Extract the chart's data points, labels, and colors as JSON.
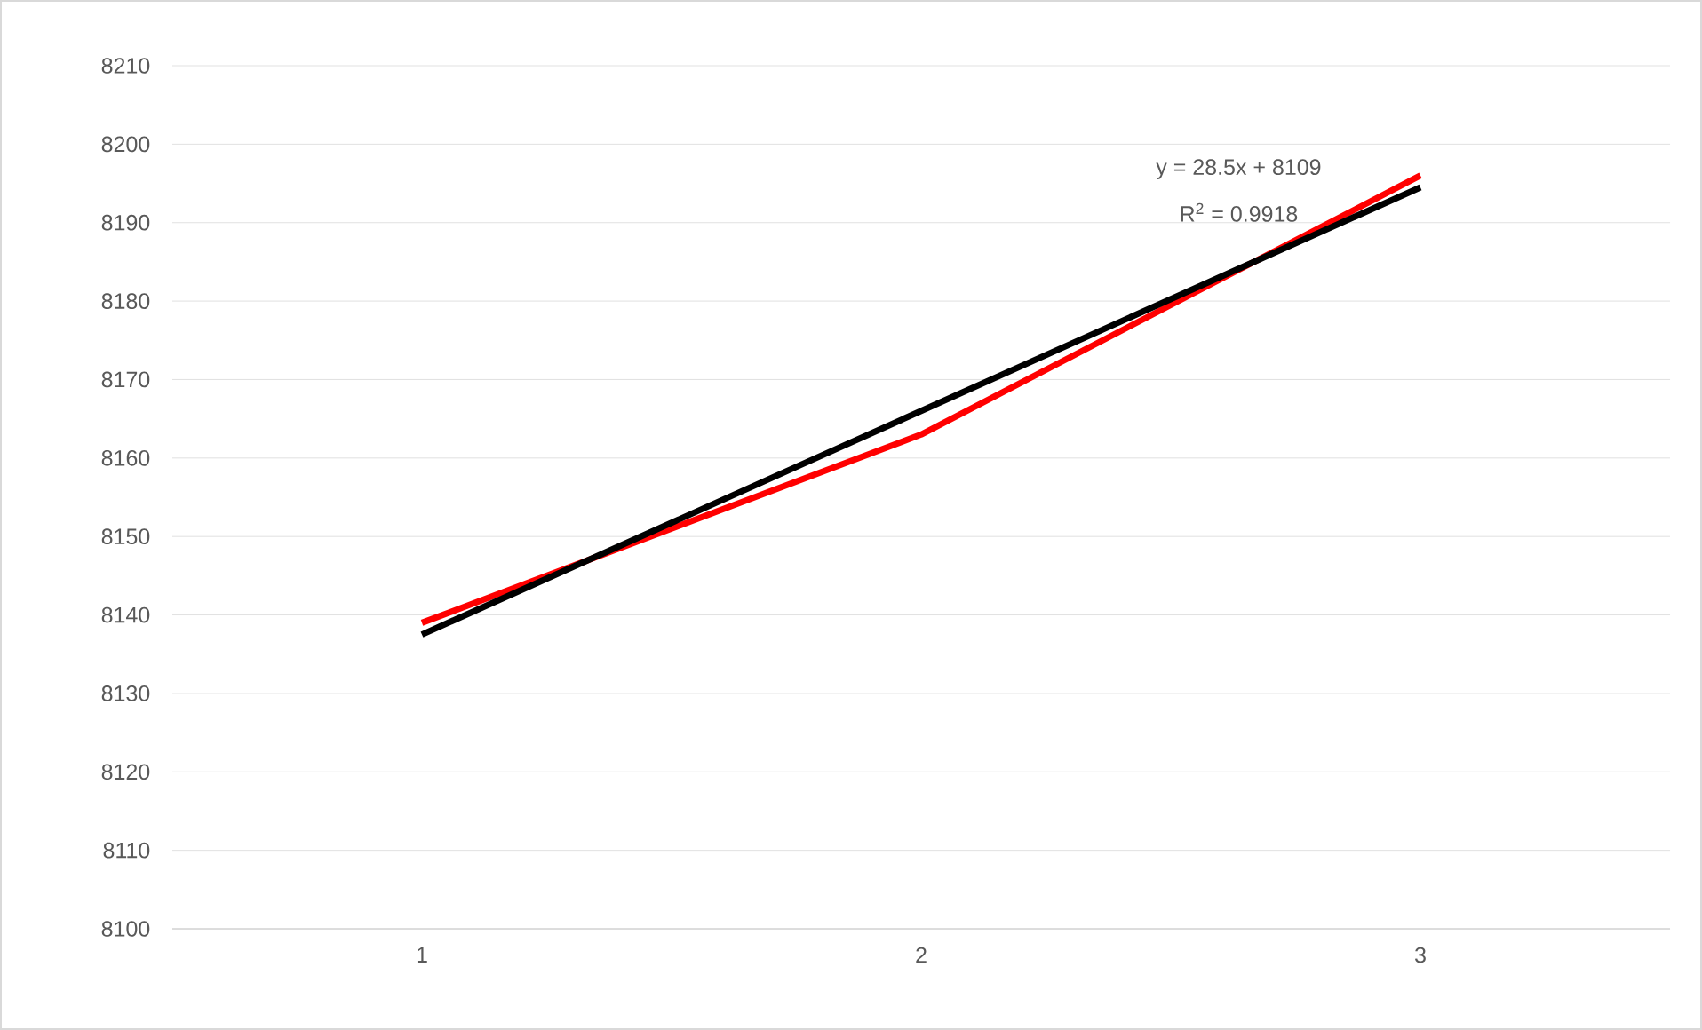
{
  "chart_data": {
    "type": "line",
    "categories": [
      "1",
      "2",
      "3"
    ],
    "series": [
      {
        "color": "#ff0000",
        "values": [
          8139,
          8163,
          8196
        ]
      },
      {
        "type": "line",
        "color": "#000000",
        "values": [
          8137.5,
          8166,
          8194.5
        ]
      }
    ],
    "ylim": [
      8100,
      8210
    ],
    "yticks": [
      8100,
      8110,
      8120,
      8130,
      8140,
      8150,
      8160,
      8170,
      8180,
      8190,
      8200,
      8210
    ],
    "grid": "y",
    "legend": false,
    "marker": "none",
    "line_style": "solid",
    "annotations": [
      "y = 28.5x + 8109",
      "R$^{2}$ = 0.9918"
    ]
  }
}
